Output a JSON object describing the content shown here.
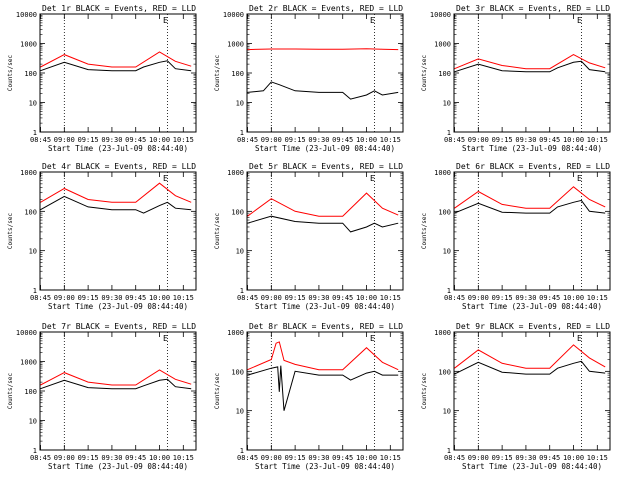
{
  "figure": {
    "xtick_labels": [
      "08:45",
      "09:00",
      "09:15",
      "09:30",
      "09:45",
      "10:00",
      "10:15"
    ],
    "ytick_labels": [
      "1",
      "10",
      "100",
      "1000",
      "10000"
    ],
    "ylabel": "Counts/sec",
    "xlabel": "Start Time (23-Jul-09 08:44:40)",
    "annotation": "E"
  },
  "chart_data": [
    {
      "type": "line",
      "title": "Det 1r BLACK = Events, RED = LLD",
      "ylim": [
        1,
        10000
      ],
      "yscale": "log",
      "xlim": [
        "08:44:40",
        "10:23"
      ],
      "vlines": [
        "09:00",
        "10:05"
      ],
      "colors": {
        "events": "#000000",
        "lld": "#ff0000"
      },
      "series": [
        {
          "name": "Events",
          "x": [
            "08:45",
            "09:00",
            "09:15",
            "09:30",
            "09:45",
            "09:50",
            "10:00",
            "10:05",
            "10:10",
            "10:20"
          ],
          "values": [
            120,
            230,
            130,
            120,
            120,
            160,
            230,
            260,
            140,
            120
          ]
        },
        {
          "name": "LLD",
          "x": [
            "08:45",
            "09:00",
            "09:15",
            "09:30",
            "09:45",
            "10:00",
            "10:10",
            "10:20"
          ],
          "values": [
            160,
            420,
            200,
            160,
            160,
            520,
            250,
            170
          ]
        }
      ]
    },
    {
      "type": "line",
      "title": "Det 2r BLACK = Events, RED = LLD",
      "ylim": [
        1,
        10000
      ],
      "yscale": "log",
      "xlim": [
        "08:44:40",
        "10:23"
      ],
      "vlines": [
        "09:00",
        "10:05"
      ],
      "colors": {
        "events": "#000000",
        "lld": "#ff0000"
      },
      "series": [
        {
          "name": "Events",
          "x": [
            "08:45",
            "08:55",
            "09:00",
            "09:05",
            "09:15",
            "09:30",
            "09:45",
            "09:50",
            "10:00",
            "10:05",
            "10:10",
            "10:20"
          ],
          "values": [
            22,
            25,
            50,
            40,
            25,
            22,
            22,
            13,
            18,
            25,
            18,
            22
          ]
        },
        {
          "name": "LLD",
          "x": [
            "08:45",
            "09:00",
            "09:15",
            "09:30",
            "09:45",
            "10:00",
            "10:10",
            "10:20"
          ],
          "values": [
            620,
            650,
            650,
            640,
            640,
            660,
            640,
            620
          ]
        }
      ]
    },
    {
      "type": "line",
      "title": "Det 3r BLACK = Events, RED = LLD",
      "ylim": [
        1,
        10000
      ],
      "yscale": "log",
      "xlim": [
        "08:44:40",
        "10:23"
      ],
      "vlines": [
        "09:00",
        "10:05"
      ],
      "colors": {
        "events": "#000000",
        "lld": "#ff0000"
      },
      "series": [
        {
          "name": "Events",
          "x": [
            "08:45",
            "09:00",
            "09:15",
            "09:30",
            "09:45",
            "09:50",
            "10:00",
            "10:05",
            "10:10",
            "10:20"
          ],
          "values": [
            110,
            200,
            120,
            110,
            110,
            150,
            230,
            250,
            130,
            110
          ]
        },
        {
          "name": "LLD",
          "x": [
            "08:45",
            "09:00",
            "09:15",
            "09:30",
            "09:45",
            "10:00",
            "10:10",
            "10:20"
          ],
          "values": [
            140,
            300,
            180,
            140,
            140,
            420,
            220,
            150
          ]
        }
      ]
    },
    {
      "type": "line",
      "title": "Det 4r BLACK = Events, RED = LLD",
      "ylim": [
        1,
        1000
      ],
      "yscale": "log",
      "xlim": [
        "08:44:40",
        "10:23"
      ],
      "vlines": [
        "09:00",
        "10:05"
      ],
      "colors": {
        "events": "#000000",
        "lld": "#ff0000"
      },
      "series": [
        {
          "name": "Events",
          "x": [
            "08:45",
            "09:00",
            "09:15",
            "09:30",
            "09:45",
            "09:50",
            "10:00",
            "10:05",
            "10:10",
            "10:20"
          ],
          "values": [
            110,
            240,
            130,
            110,
            110,
            90,
            140,
            170,
            120,
            110
          ]
        },
        {
          "name": "LLD",
          "x": [
            "08:45",
            "09:00",
            "09:15",
            "09:30",
            "09:45",
            "10:00",
            "10:10",
            "10:20"
          ],
          "values": [
            170,
            380,
            200,
            170,
            170,
            520,
            250,
            170
          ]
        }
      ]
    },
    {
      "type": "line",
      "title": "Det 5r BLACK = Events, RED = LLD",
      "ylim": [
        1,
        1000
      ],
      "yscale": "log",
      "xlim": [
        "08:44:40",
        "10:23"
      ],
      "vlines": [
        "09:00",
        "10:05"
      ],
      "colors": {
        "events": "#000000",
        "lld": "#ff0000"
      },
      "series": [
        {
          "name": "Events",
          "x": [
            "08:45",
            "09:00",
            "09:15",
            "09:30",
            "09:45",
            "09:50",
            "10:00",
            "10:05",
            "10:10",
            "10:20"
          ],
          "values": [
            50,
            75,
            55,
            50,
            50,
            30,
            40,
            50,
            40,
            50
          ]
        },
        {
          "name": "LLD",
          "x": [
            "08:45",
            "09:00",
            "09:15",
            "09:30",
            "09:45",
            "10:00",
            "10:10",
            "10:20"
          ],
          "values": [
            75,
            210,
            100,
            75,
            75,
            290,
            120,
            80
          ]
        }
      ]
    },
    {
      "type": "line",
      "title": "Det 6r BLACK = Events, RED = LLD",
      "ylim": [
        1,
        1000
      ],
      "yscale": "log",
      "xlim": [
        "08:44:40",
        "10:23"
      ],
      "vlines": [
        "09:00",
        "10:05"
      ],
      "colors": {
        "events": "#000000",
        "lld": "#ff0000"
      },
      "series": [
        {
          "name": "Events",
          "x": [
            "08:45",
            "09:00",
            "09:15",
            "09:30",
            "09:45",
            "09:50",
            "10:00",
            "10:05",
            "10:10",
            "10:20"
          ],
          "values": [
            90,
            160,
            95,
            90,
            90,
            130,
            170,
            190,
            100,
            90
          ]
        },
        {
          "name": "LLD",
          "x": [
            "08:45",
            "09:00",
            "09:15",
            "09:30",
            "09:45",
            "10:00",
            "10:10",
            "10:20"
          ],
          "values": [
            120,
            320,
            150,
            120,
            120,
            420,
            200,
            130
          ]
        }
      ]
    },
    {
      "type": "line",
      "title": "Det 7r BLACK = Events, RED = LLD",
      "ylim": [
        1,
        10000
      ],
      "yscale": "log",
      "xlim": [
        "08:44:40",
        "10:23"
      ],
      "vlines": [
        "09:00",
        "10:05"
      ],
      "colors": {
        "events": "#000000",
        "lld": "#ff0000"
      },
      "series": [
        {
          "name": "Events",
          "x": [
            "08:45",
            "09:00",
            "09:15",
            "09:30",
            "09:45",
            "09:50",
            "10:00",
            "10:05",
            "10:10",
            "10:20"
          ],
          "values": [
            120,
            230,
            130,
            120,
            120,
            150,
            230,
            250,
            140,
            120
          ]
        },
        {
          "name": "LLD",
          "x": [
            "08:45",
            "09:00",
            "09:15",
            "09:30",
            "09:45",
            "10:00",
            "10:10",
            "10:20"
          ],
          "values": [
            160,
            420,
            200,
            160,
            160,
            520,
            250,
            170
          ]
        }
      ]
    },
    {
      "type": "line",
      "title": "Det 8r BLACK = Events, RED = LLD",
      "ylim": [
        1,
        1000
      ],
      "yscale": "log",
      "xlim": [
        "08:44:40",
        "10:23"
      ],
      "vlines": [
        "09:00",
        "10:05"
      ],
      "colors": {
        "events": "#000000",
        "lld": "#ff0000"
      },
      "series": [
        {
          "name": "Events",
          "x": [
            "08:45",
            "09:00",
            "09:04",
            "09:05",
            "09:06",
            "09:08",
            "09:15",
            "09:30",
            "09:45",
            "09:50",
            "10:00",
            "10:05",
            "10:10",
            "10:20"
          ],
          "values": [
            80,
            120,
            130,
            30,
            140,
            10,
            100,
            80,
            80,
            60,
            90,
            100,
            80,
            80
          ]
        },
        {
          "name": "LLD",
          "x": [
            "08:45",
            "09:00",
            "09:03",
            "09:05",
            "09:08",
            "09:15",
            "09:30",
            "09:45",
            "10:00",
            "10:10",
            "10:20"
          ],
          "values": [
            110,
            200,
            520,
            560,
            190,
            150,
            110,
            110,
            400,
            170,
            110
          ]
        }
      ]
    },
    {
      "type": "line",
      "title": "Det 9r BLACK = Events, RED = LLD",
      "ylim": [
        1,
        1000
      ],
      "yscale": "log",
      "xlim": [
        "08:44:40",
        "10:23"
      ],
      "vlines": [
        "09:00",
        "10:05"
      ],
      "colors": {
        "events": "#000000",
        "lld": "#ff0000"
      },
      "series": [
        {
          "name": "Events",
          "x": [
            "08:45",
            "09:00",
            "09:15",
            "09:30",
            "09:45",
            "09:50",
            "10:00",
            "10:05",
            "10:10",
            "10:20"
          ],
          "values": [
            85,
            170,
            95,
            85,
            85,
            120,
            160,
            180,
            100,
            90
          ]
        },
        {
          "name": "LLD",
          "x": [
            "08:45",
            "09:00",
            "09:15",
            "09:30",
            "09:45",
            "10:00",
            "10:10",
            "10:20"
          ],
          "values": [
            120,
            350,
            160,
            120,
            120,
            470,
            220,
            130
          ]
        }
      ]
    }
  ]
}
